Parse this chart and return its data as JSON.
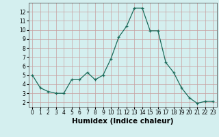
{
  "x": [
    0,
    1,
    2,
    3,
    4,
    5,
    6,
    7,
    8,
    9,
    10,
    11,
    12,
    13,
    14,
    15,
    16,
    17,
    18,
    19,
    20,
    21,
    22,
    23
  ],
  "y": [
    5.0,
    3.6,
    3.2,
    3.0,
    3.0,
    4.5,
    4.5,
    5.3,
    4.5,
    5.0,
    6.8,
    9.2,
    10.4,
    12.4,
    12.4,
    9.9,
    9.9,
    6.4,
    5.3,
    3.6,
    2.5,
    1.9,
    2.1,
    2.1
  ],
  "xlabel": "Humidex (Indice chaleur)",
  "ylim": [
    1.5,
    13.0
  ],
  "xlim": [
    -0.5,
    23.5
  ],
  "yticks": [
    2,
    3,
    4,
    5,
    6,
    7,
    8,
    9,
    10,
    11,
    12
  ],
  "xticks": [
    0,
    1,
    2,
    3,
    4,
    5,
    6,
    7,
    8,
    9,
    10,
    11,
    12,
    13,
    14,
    15,
    16,
    17,
    18,
    19,
    20,
    21,
    22,
    23
  ],
  "line_color": "#1a6b5a",
  "marker": "+",
  "bg_color": "#d4efef",
  "grid_color": "#c8a0a0",
  "tick_label_fontsize": 5.5,
  "xlabel_fontsize": 7.5
}
